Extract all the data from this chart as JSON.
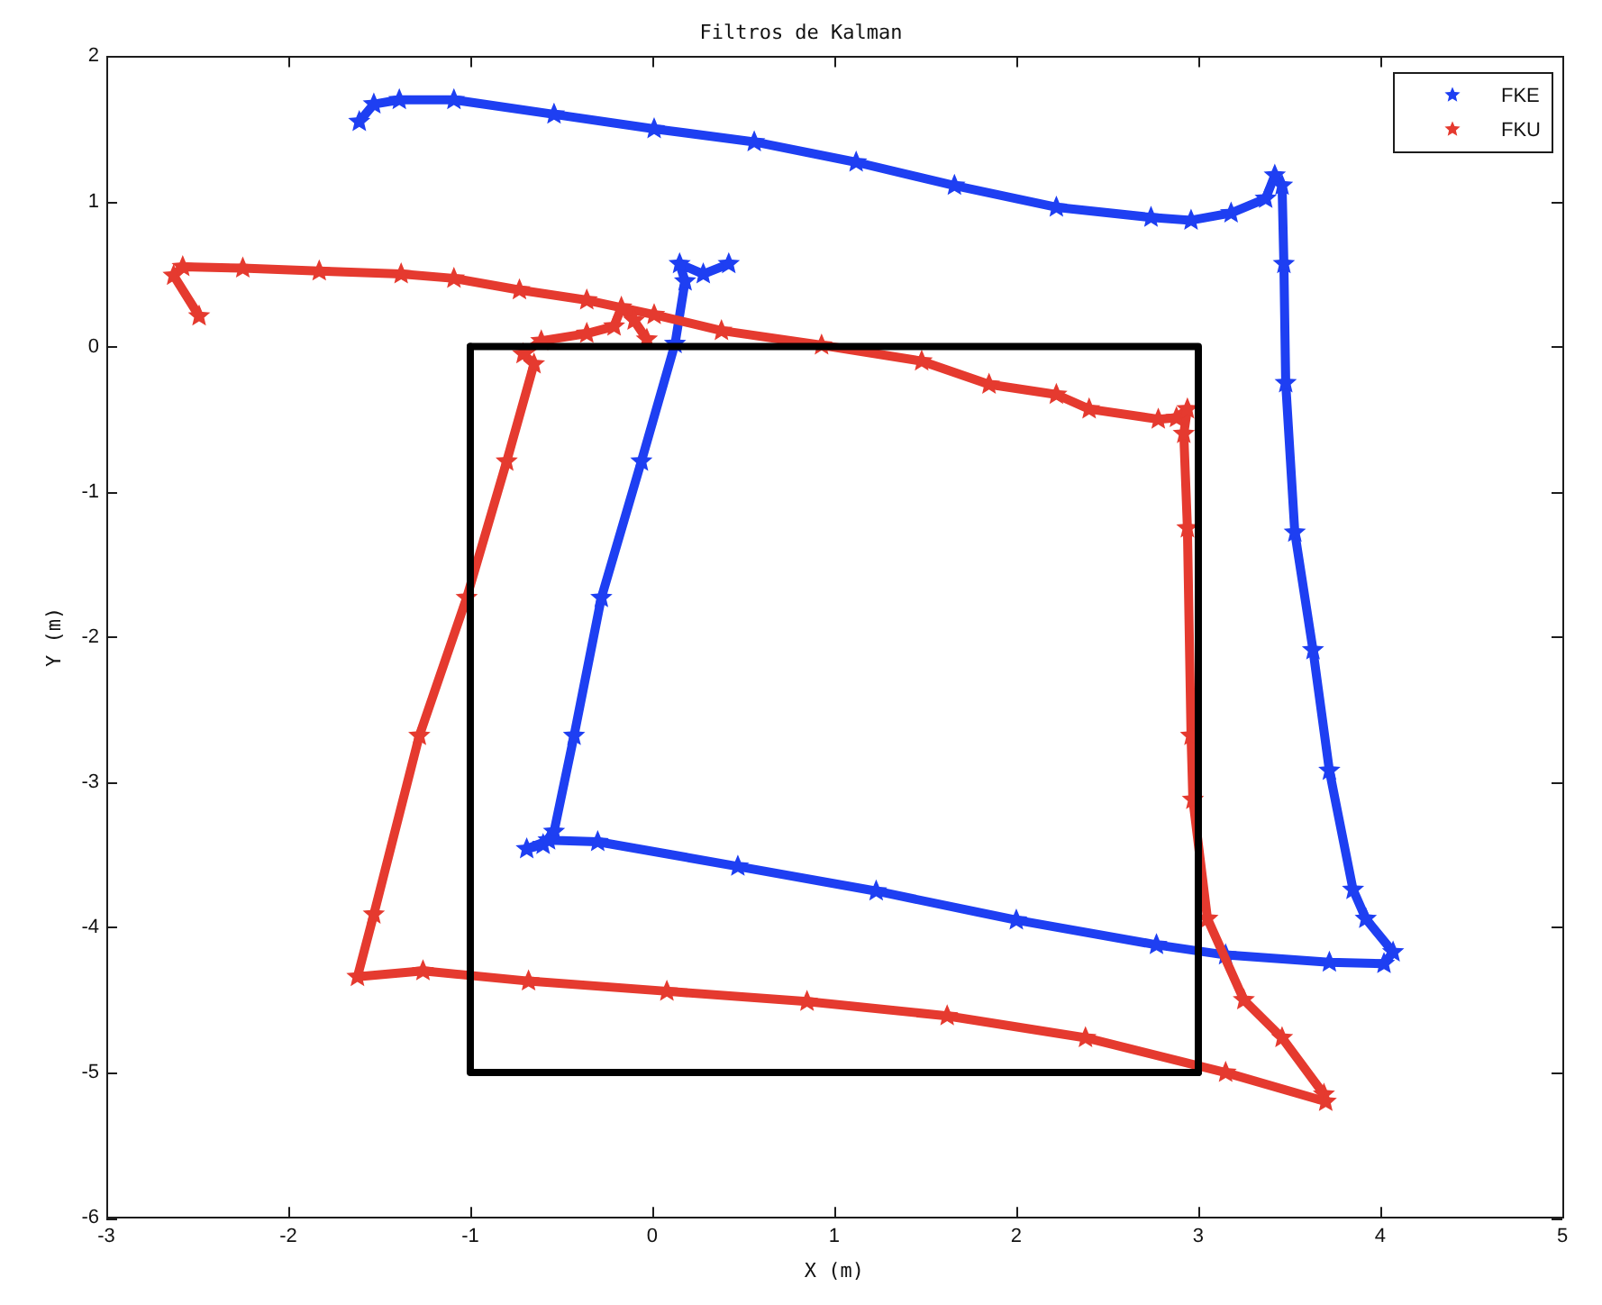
{
  "chart_data": {
    "type": "line",
    "title": "Filtros de Kalman",
    "xlabel": "X (m)",
    "ylabel": "Y (m)",
    "xlim": [
      -3,
      5
    ],
    "ylim": [
      -6,
      2
    ],
    "xticks": [
      -3,
      -2,
      -1,
      0,
      1,
      2,
      3,
      4,
      5
    ],
    "yticks": [
      -6,
      -5,
      -4,
      -3,
      -2,
      -1,
      0,
      1,
      2
    ],
    "legend": "top right",
    "series": [
      {
        "name": "FKE",
        "color": "#1e3ff2",
        "marker": "star",
        "x": [
          0.42,
          0.28,
          0.15,
          0.18,
          0.125,
          -0.06,
          -0.28,
          -0.43,
          -0.54,
          -0.6,
          -0.69,
          -0.57,
          -0.3,
          0.47,
          1.23,
          2.0,
          2.77,
          3.15,
          3.72,
          4.02,
          4.07,
          3.92,
          3.85,
          3.72,
          3.63,
          3.53,
          3.48,
          3.47,
          3.46,
          3.42,
          3.37,
          3.18,
          2.96,
          2.74,
          2.22,
          1.66,
          1.12,
          0.56,
          0.01,
          -0.54,
          -1.09,
          -1.39,
          -1.53,
          -1.61
        ],
        "values": [
          0.57,
          0.5,
          0.57,
          0.45,
          0.02,
          -0.79,
          -1.73,
          -2.68,
          -3.34,
          -3.43,
          -3.46,
          -3.4,
          -3.41,
          -3.58,
          -3.75,
          -3.95,
          -4.12,
          -4.19,
          -4.24,
          -4.25,
          -4.17,
          -3.94,
          -3.74,
          -2.92,
          -2.09,
          -1.28,
          -0.25,
          0.57,
          1.11,
          1.18,
          1.02,
          0.92,
          0.87,
          0.89,
          0.96,
          1.11,
          1.27,
          1.41,
          1.5,
          1.6,
          1.7,
          1.7,
          1.67,
          1.55
        ]
      },
      {
        "name": "FKU",
        "color": "#e53a2f",
        "marker": "star",
        "x": [
          -2.49,
          -2.63,
          -2.58,
          -2.25,
          -1.83,
          -1.38,
          -1.09,
          -0.73,
          -0.36,
          0.01,
          0.38,
          0.93,
          1.48,
          1.85,
          2.22,
          2.4,
          2.78,
          2.88,
          2.94,
          2.92,
          2.94,
          2.96,
          2.97,
          3.05,
          3.25,
          3.46,
          3.69,
          3.7,
          3.15,
          2.38,
          1.62,
          0.85,
          0.08,
          -0.68,
          -1.26,
          -1.62,
          -1.53,
          -1.28,
          -1.02,
          -0.8,
          -0.65,
          -0.71,
          -0.61,
          -0.36,
          -0.21,
          -0.17,
          -0.1,
          -0.03
        ],
        "values": [
          0.21,
          0.49,
          0.55,
          0.54,
          0.52,
          0.5,
          0.47,
          0.39,
          0.32,
          0.22,
          0.11,
          0.01,
          -0.1,
          -0.26,
          -0.33,
          -0.43,
          -0.5,
          -0.49,
          -0.43,
          -0.6,
          -1.25,
          -2.68,
          -3.12,
          -3.94,
          -4.5,
          -4.76,
          -5.15,
          -5.2,
          -5.0,
          -4.76,
          -4.61,
          -4.51,
          -4.44,
          -4.37,
          -4.3,
          -4.34,
          -3.91,
          -2.68,
          -1.73,
          -0.79,
          -0.12,
          -0.05,
          0.04,
          0.09,
          0.14,
          0.27,
          0.18,
          0.05
        ]
      },
      {
        "color": "#000000",
        "marker": "none",
        "x": [
          -1,
          3,
          3
        ],
        "values": [
          0,
          0,
          -5
        ]
      },
      {
        "color": "#000000",
        "marker": "none",
        "x": [
          3,
          -1,
          -1
        ],
        "values": [
          -5,
          -5,
          0
        ]
      }
    ]
  }
}
